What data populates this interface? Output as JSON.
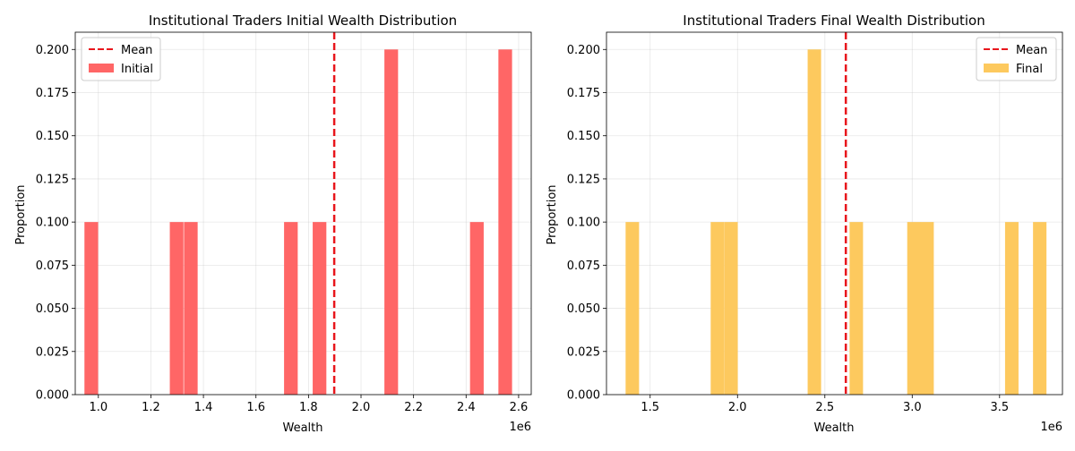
{
  "charts": [
    {
      "type": "bar",
      "title": "Institutional Traders Initial Wealth Distribution",
      "xlabel": "Wealth",
      "ylabel": "Proportion",
      "x_offset_label": "1e6",
      "xlim": [
        0.912,
        2.648
      ],
      "ylim": [
        0,
        0.21
      ],
      "xticks": [
        "1.0",
        "1.2",
        "1.4",
        "1.6",
        "1.8",
        "2.0",
        "2.2",
        "2.4",
        "2.6"
      ],
      "yticks": [
        "0.000",
        "0.025",
        "0.050",
        "0.075",
        "0.100",
        "0.125",
        "0.150",
        "0.175",
        "0.200"
      ],
      "bar_color": "#ff6666",
      "mean_color": "#e8161c",
      "legend": {
        "position": "upper left",
        "mean_label": "Mean",
        "series_label": "Initial"
      },
      "mean": 1.898,
      "bar_width": 0.052,
      "bars": [
        {
          "x": 0.973,
          "value": 0.1
        },
        {
          "x": 1.298,
          "value": 0.1
        },
        {
          "x": 1.352,
          "value": 0.1
        },
        {
          "x": 1.733,
          "value": 0.1
        },
        {
          "x": 1.842,
          "value": 0.1
        },
        {
          "x": 2.115,
          "value": 0.2
        },
        {
          "x": 2.441,
          "value": 0.1
        },
        {
          "x": 2.549,
          "value": 0.2
        }
      ]
    },
    {
      "type": "bar",
      "title": "Institutional Traders Final Wealth Distribution",
      "xlabel": "Wealth",
      "ylabel": "Proportion",
      "x_offset_label": "1e6",
      "xlim": [
        1.25,
        3.86
      ],
      "ylim": [
        0,
        0.21
      ],
      "xticks": [
        "1.5",
        "2.0",
        "2.5",
        "3.0",
        "3.5"
      ],
      "yticks": [
        "0.000",
        "0.025",
        "0.050",
        "0.075",
        "0.100",
        "0.125",
        "0.150",
        "0.175",
        "0.200"
      ],
      "bar_color": "#fdc95e",
      "mean_color": "#e8161c",
      "legend": {
        "position": "upper right",
        "mean_label": "Mean",
        "series_label": "Final"
      },
      "mean": 2.62,
      "bar_width": 0.077,
      "bars": [
        {
          "x": 1.398,
          "value": 0.1
        },
        {
          "x": 1.885,
          "value": 0.1
        },
        {
          "x": 1.963,
          "value": 0.1
        },
        {
          "x": 2.44,
          "value": 0.2
        },
        {
          "x": 2.68,
          "value": 0.1
        },
        {
          "x": 3.01,
          "value": 0.1
        },
        {
          "x": 3.085,
          "value": 0.1
        },
        {
          "x": 3.57,
          "value": 0.1
        },
        {
          "x": 3.73,
          "value": 0.1
        }
      ]
    }
  ]
}
